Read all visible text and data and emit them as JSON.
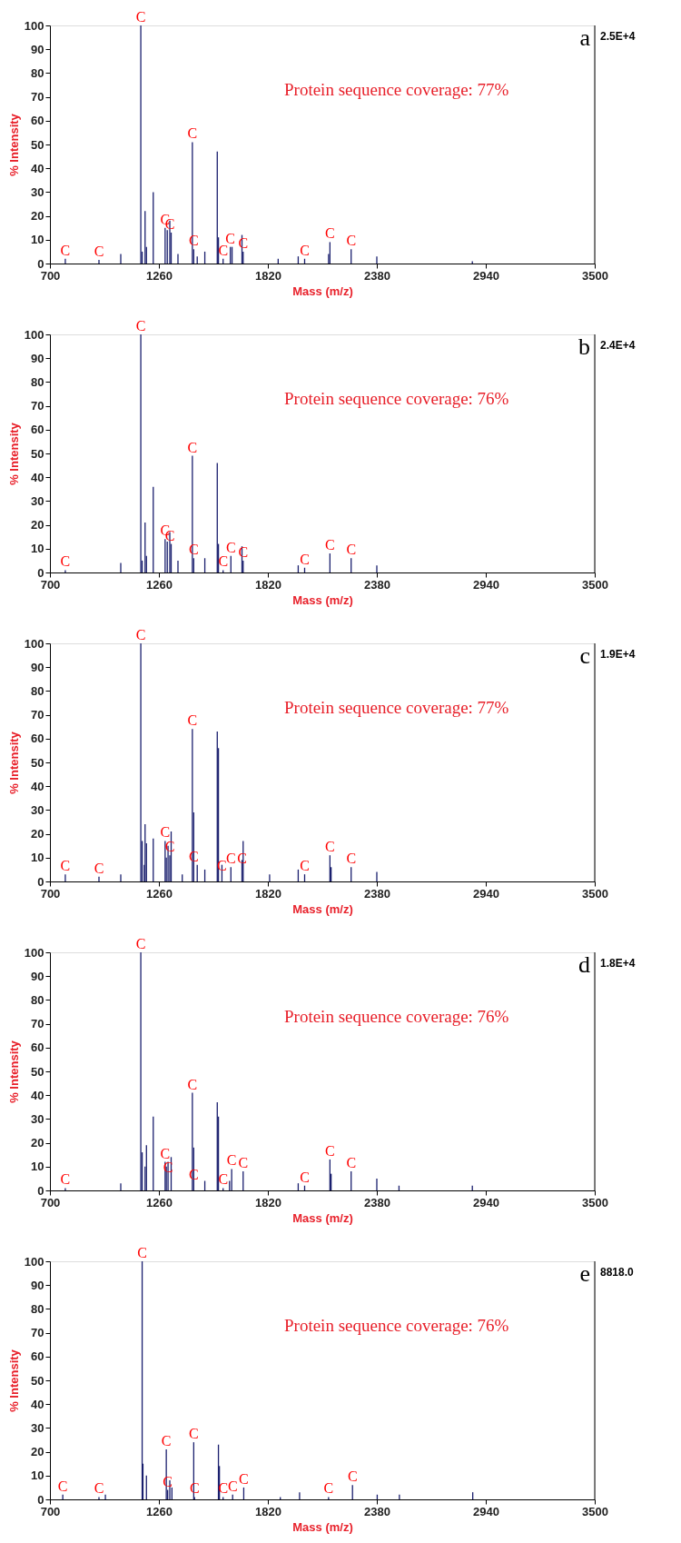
{
  "chart_data": [
    {
      "type": "bar",
      "xlabel": "Mass (m/z)",
      "ylabel": "% Intensity",
      "color": "#1a1f6e",
      "xlim": [
        700,
        3500
      ],
      "ylim": [
        0,
        100
      ],
      "xticks": [
        700,
        1260,
        1820,
        2380,
        2940,
        3500
      ],
      "yticks": [
        0,
        10,
        20,
        30,
        40,
        50,
        60,
        70,
        80,
        90,
        100
      ],
      "x": [
        779,
        952,
        1064,
        1167,
        1174,
        1189,
        1196,
        1231,
        1292,
        1303,
        1316,
        1323,
        1358,
        1432,
        1439,
        1457,
        1496,
        1560,
        1566,
        1590,
        1627,
        1636,
        1687,
        1693,
        1873,
        1976,
        2009,
        2132,
        2139,
        2248,
        2380,
        2871
      ],
      "values": [
        2,
        1.5,
        4,
        100,
        5,
        22,
        7,
        30,
        15,
        14,
        18,
        13,
        4,
        51,
        6,
        3,
        5,
        47,
        11,
        2,
        7,
        7,
        12,
        5,
        2,
        3,
        2,
        4,
        9,
        6,
        3,
        1
      ],
      "annotations": [
        "a",
        "2.5E+4",
        "Protein sequence coverage: 77%",
        {
          "text": "C",
          "x": 779,
          "y": 2
        },
        {
          "text": "C",
          "x": 952,
          "y": 1.5
        },
        {
          "text": "C",
          "x": 1167,
          "y": 100
        },
        {
          "text": "C",
          "x": 1292,
          "y": 15
        },
        {
          "text": "C",
          "x": 1316,
          "y": 13
        },
        {
          "text": "C",
          "x": 1432,
          "y": 51
        },
        {
          "text": "C",
          "x": 1439,
          "y": 6
        },
        {
          "text": "C",
          "x": 1590,
          "y": 2
        },
        {
          "text": "C",
          "x": 1627,
          "y": 7
        },
        {
          "text": "C",
          "x": 1693,
          "y": 5
        },
        {
          "text": "C",
          "x": 2009,
          "y": 2
        },
        {
          "text": "C",
          "x": 2139,
          "y": 9
        },
        {
          "text": "C",
          "x": 2248,
          "y": 6
        }
      ]
    },
    {
      "type": "bar",
      "xlabel": "Mass (m/z)",
      "ylabel": "% Intensity",
      "color": "#1a1f6e",
      "xlim": [
        700,
        3500
      ],
      "ylim": [
        0,
        100
      ],
      "xticks": [
        700,
        1260,
        1820,
        2380,
        2940,
        3500
      ],
      "yticks": [
        0,
        10,
        20,
        30,
        40,
        50,
        60,
        70,
        80,
        90,
        100
      ],
      "x": [
        779,
        1064,
        1167,
        1174,
        1189,
        1196,
        1231,
        1292,
        1303,
        1316,
        1323,
        1358,
        1432,
        1439,
        1496,
        1560,
        1566,
        1590,
        1630,
        1687,
        1693,
        1976,
        2009,
        2139,
        2248,
        2380
      ],
      "values": [
        1,
        4,
        100,
        5,
        21,
        7,
        36,
        14,
        13,
        17,
        12,
        5,
        49,
        6,
        6,
        46,
        12,
        1,
        7,
        11,
        5,
        3,
        2,
        8,
        6,
        3
      ],
      "annotations": [
        "b",
        "2.4E+4",
        "Protein sequence coverage: 76%",
        {
          "text": "C",
          "x": 779,
          "y": 1
        },
        {
          "text": "C",
          "x": 1167,
          "y": 100
        },
        {
          "text": "C",
          "x": 1292,
          "y": 14
        },
        {
          "text": "C",
          "x": 1316,
          "y": 12
        },
        {
          "text": "C",
          "x": 1432,
          "y": 49
        },
        {
          "text": "C",
          "x": 1439,
          "y": 6
        },
        {
          "text": "C",
          "x": 1590,
          "y": 1
        },
        {
          "text": "C",
          "x": 1630,
          "y": 7
        },
        {
          "text": "C",
          "x": 1693,
          "y": 5
        },
        {
          "text": "C",
          "x": 2009,
          "y": 2
        },
        {
          "text": "C",
          "x": 2139,
          "y": 8
        },
        {
          "text": "C",
          "x": 2248,
          "y": 6
        }
      ]
    },
    {
      "type": "bar",
      "xlabel": "Mass (m/z)",
      "ylabel": "% Intensity",
      "color": "#1a1f6e",
      "xlim": [
        700,
        3500
      ],
      "ylim": [
        0,
        100
      ],
      "xticks": [
        700,
        1260,
        1820,
        2380,
        2940,
        3500
      ],
      "yticks": [
        0,
        10,
        20,
        30,
        40,
        50,
        60,
        70,
        80,
        90,
        100
      ],
      "x": [
        779,
        952,
        1064,
        1167,
        1174,
        1185,
        1189,
        1196,
        1231,
        1292,
        1298,
        1307,
        1316,
        1323,
        1380,
        1432,
        1439,
        1457,
        1496,
        1560,
        1566,
        1584,
        1630,
        1687,
        1693,
        1829,
        1976,
        2009,
        2139,
        2145,
        2248,
        2380
      ],
      "values": [
        3,
        2,
        3,
        100,
        17,
        7,
        24,
        16,
        18,
        17,
        10,
        15,
        11,
        21,
        3,
        64,
        29,
        7,
        5,
        63,
        56,
        7,
        6,
        9,
        17,
        3,
        5,
        3,
        11,
        6,
        6,
        4
      ],
      "annotations": [
        "c",
        "1.9E+4",
        "Protein sequence coverage: 77%",
        {
          "text": "C",
          "x": 779,
          "y": 3
        },
        {
          "text": "C",
          "x": 952,
          "y": 2
        },
        {
          "text": "C",
          "x": 1167,
          "y": 100
        },
        {
          "text": "C",
          "x": 1292,
          "y": 17
        },
        {
          "text": "C",
          "x": 1316,
          "y": 11
        },
        {
          "text": "C",
          "x": 1432,
          "y": 64
        },
        {
          "text": "C",
          "x": 1439,
          "y": 7
        },
        {
          "text": "C",
          "x": 1584,
          "y": 3
        },
        {
          "text": "C",
          "x": 1630,
          "y": 6
        },
        {
          "text": "C",
          "x": 1687,
          "y": 6
        },
        {
          "text": "C",
          "x": 2009,
          "y": 3
        },
        {
          "text": "C",
          "x": 2139,
          "y": 11
        },
        {
          "text": "C",
          "x": 2248,
          "y": 6
        }
      ]
    },
    {
      "type": "bar",
      "xlabel": "Mass (m/z)",
      "ylabel": "% Intensity",
      "color": "#1a1f6e",
      "xlim": [
        700,
        3500
      ],
      "ylim": [
        0,
        100
      ],
      "xticks": [
        700,
        1260,
        1820,
        2380,
        2940,
        3500
      ],
      "yticks": [
        0,
        10,
        20,
        30,
        40,
        50,
        60,
        70,
        80,
        90,
        100
      ],
      "x": [
        779,
        1064,
        1167,
        1174,
        1189,
        1196,
        1231,
        1292,
        1298,
        1307,
        1323,
        1432,
        1439,
        1496,
        1560,
        1566,
        1590,
        1623,
        1634,
        1693,
        1976,
        2009,
        2139,
        2145,
        2248,
        2380,
        2494,
        2871
      ],
      "values": [
        1,
        3,
        100,
        16,
        10,
        19,
        31,
        12,
        10,
        12,
        14,
        41,
        18,
        4,
        37,
        31,
        1,
        4,
        9,
        8,
        3,
        2,
        13,
        7,
        8,
        5,
        2,
        2
      ],
      "annotations": [
        "d",
        "1.8E+4",
        "Protein sequence coverage: 76%",
        {
          "text": "C",
          "x": 779,
          "y": 1
        },
        {
          "text": "C",
          "x": 1167,
          "y": 100
        },
        {
          "text": "C",
          "x": 1292,
          "y": 12
        },
        {
          "text": "C",
          "x": 1307,
          "y": 6
        },
        {
          "text": "C",
          "x": 1432,
          "y": 41
        },
        {
          "text": "C",
          "x": 1439,
          "y": 3
        },
        {
          "text": "C",
          "x": 1590,
          "y": 1
        },
        {
          "text": "C",
          "x": 1634,
          "y": 9
        },
        {
          "text": "C",
          "x": 1693,
          "y": 8
        },
        {
          "text": "C",
          "x": 2009,
          "y": 2
        },
        {
          "text": "C",
          "x": 2139,
          "y": 13
        },
        {
          "text": "C",
          "x": 2248,
          "y": 8
        }
      ]
    },
    {
      "type": "bar",
      "xlabel": "Mass (m/z)",
      "ylabel": "% Intensity",
      "color": "#1a1f6e",
      "xlim": [
        700,
        3500
      ],
      "ylim": [
        0,
        100
      ],
      "xticks": [
        700,
        1260,
        1820,
        2380,
        2940,
        3500
      ],
      "yticks": [
        0,
        10,
        20,
        30,
        40,
        50,
        60,
        70,
        80,
        90,
        100
      ],
      "x": [
        766,
        952,
        985,
        1174,
        1178,
        1196,
        1298,
        1305,
        1316,
        1327,
        1439,
        1443,
        1566,
        1571,
        1590,
        1639,
        1696,
        1884,
        1983,
        2132,
        2255,
        2382,
        2496,
        2873
      ],
      "values": [
        2,
        1,
        2,
        100,
        15,
        10,
        21,
        4,
        8,
        5,
        24,
        1,
        23,
        14,
        1,
        2,
        5,
        1,
        3,
        1,
        6,
        2,
        2,
        3
      ],
      "annotations": [
        "e",
        "8818.0",
        "Protein sequence coverage: 76%",
        {
          "text": "C",
          "x": 766,
          "y": 2
        },
        {
          "text": "C",
          "x": 952,
          "y": 1
        },
        {
          "text": "C",
          "x": 1174,
          "y": 100
        },
        {
          "text": "C",
          "x": 1298,
          "y": 21
        },
        {
          "text": "C",
          "x": 1305,
          "y": 4
        },
        {
          "text": "C",
          "x": 1439,
          "y": 24
        },
        {
          "text": "C",
          "x": 1443,
          "y": 1
        },
        {
          "text": "C",
          "x": 1590,
          "y": 1
        },
        {
          "text": "C",
          "x": 1639,
          "y": 2
        },
        {
          "text": "C",
          "x": 1696,
          "y": 5
        },
        {
          "text": "C",
          "x": 2132,
          "y": 1
        },
        {
          "text": "C",
          "x": 2255,
          "y": 6
        }
      ]
    }
  ]
}
